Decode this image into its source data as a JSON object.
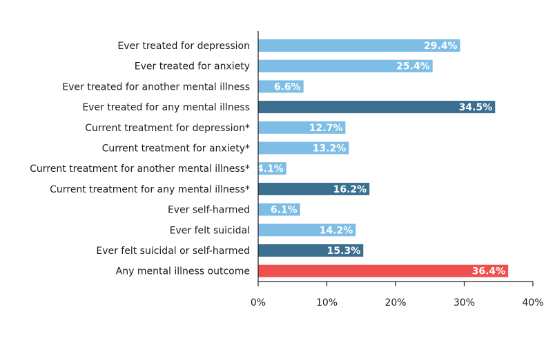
{
  "chart_data": {
    "type": "bar",
    "orientation": "horizontal",
    "title": "",
    "xlabel": "",
    "ylabel": "",
    "xlim": [
      0,
      40
    ],
    "grid": false,
    "categories": [
      "Ever treated for depression",
      "Ever treated for anxiety",
      "Ever treated for another mental illness",
      "Ever treated for any mental illness",
      "Current treatment for depression*",
      "Current treatment for anxiety*",
      "Current treatment for another mental illness*",
      "Current treatment for any mental illness*",
      "Ever self-harmed",
      "Ever felt suicidal",
      "Ever felt suicidal or self-harmed",
      "Any mental illness outcome"
    ],
    "values": [
      29.4,
      25.4,
      6.6,
      34.5,
      12.7,
      13.2,
      4.1,
      16.2,
      6.1,
      14.2,
      15.3,
      36.4
    ],
    "value_labels": [
      "29.4%",
      "25.4%",
      "6.6%",
      "34.5%",
      "12.7%",
      "13.2%",
      "4.1%",
      "16.2%",
      "6.1%",
      "14.2%",
      "15.3%",
      "36.4%"
    ],
    "bar_colors": [
      "#7dbde6",
      "#7dbde6",
      "#7dbde6",
      "#3a6f8f",
      "#7dbde6",
      "#7dbde6",
      "#7dbde6",
      "#3a6f8f",
      "#7dbde6",
      "#7dbde6",
      "#3a6f8f",
      "#ef4f4f"
    ],
    "x_ticks": [
      0,
      10,
      20,
      30,
      40
    ],
    "x_tick_labels": [
      "0%",
      "10%",
      "20%",
      "30%",
      "40%"
    ]
  }
}
